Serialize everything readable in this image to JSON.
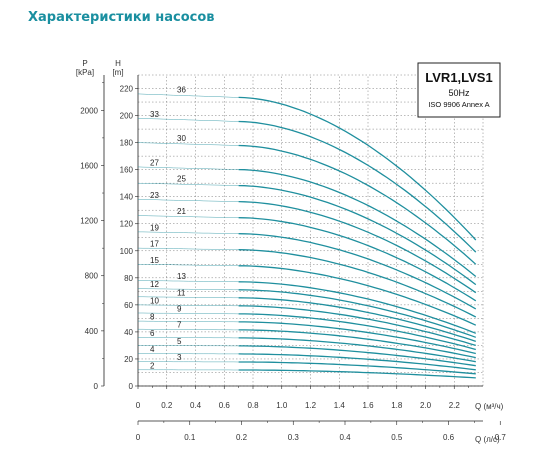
{
  "page_title": "Характеристики насосов",
  "chart_data": {
    "type": "line",
    "legend_box": {
      "title": "LVR1,LVS1",
      "frequency": "50Hz",
      "standard": "ISO 9906 Annex A"
    },
    "axis_p": {
      "label": "P",
      "unit": "[kPa]",
      "ticks": [
        "0",
        "400",
        "800",
        "1200",
        "1600",
        "2000"
      ]
    },
    "axis_h": {
      "label": "H",
      "unit": "[m]",
      "ticks": [
        "0",
        "20",
        "40",
        "60",
        "80",
        "100",
        "120",
        "140",
        "160",
        "180",
        "200",
        "220"
      ],
      "range": [
        0,
        230
      ]
    },
    "axis_q": {
      "label": "Q (м³/ч)",
      "ticks": [
        "0",
        "0.2",
        "0.4",
        "0.6",
        "0.8",
        "1.0",
        "1.2",
        "1.4",
        "1.6",
        "1.8",
        "2.0",
        "2.2"
      ],
      "range": [
        0,
        2.4
      ]
    },
    "axis_q2": {
      "label": "Q (л/с)",
      "ticks": [
        "0",
        "0.1",
        "0.2",
        "0.3",
        "0.4",
        "0.5",
        "0.6",
        "0.7"
      ],
      "range": [
        0,
        0.7
      ]
    },
    "colors": {
      "curve": "#1f8f9e",
      "grid": "#555555",
      "axis": "#222222"
    },
    "grid": "dashed",
    "curve_start_q": 0.7,
    "curve_end_q": 2.35,
    "series": [
      {
        "name": "2",
        "h0": 12,
        "h_end": 6
      },
      {
        "name": "3",
        "h0": 18,
        "h_end": 9
      },
      {
        "name": "4",
        "h0": 24,
        "h_end": 12
      },
      {
        "name": "5",
        "h0": 30,
        "h_end": 15
      },
      {
        "name": "6",
        "h0": 36,
        "h_end": 18
      },
      {
        "name": "7",
        "h0": 42,
        "h_end": 21
      },
      {
        "name": "8",
        "h0": 48,
        "h_end": 24
      },
      {
        "name": "9",
        "h0": 54,
        "h_end": 27
      },
      {
        "name": "10",
        "h0": 60,
        "h_end": 30
      },
      {
        "name": "11",
        "h0": 66,
        "h_end": 33
      },
      {
        "name": "12",
        "h0": 72,
        "h_end": 36
      },
      {
        "name": "13",
        "h0": 78,
        "h_end": 39
      },
      {
        "name": "15",
        "h0": 90,
        "h_end": 45
      },
      {
        "name": "17",
        "h0": 102,
        "h_end": 51
      },
      {
        "name": "19",
        "h0": 114,
        "h_end": 57
      },
      {
        "name": "21",
        "h0": 126,
        "h_end": 63
      },
      {
        "name": "23",
        "h0": 138,
        "h_end": 69
      },
      {
        "name": "25",
        "h0": 150,
        "h_end": 75
      },
      {
        "name": "27",
        "h0": 162,
        "h_end": 81
      },
      {
        "name": "30",
        "h0": 180,
        "h_end": 90
      },
      {
        "name": "33",
        "h0": 198,
        "h_end": 99
      },
      {
        "name": "36",
        "h0": 216,
        "h_end": 108
      }
    ]
  }
}
